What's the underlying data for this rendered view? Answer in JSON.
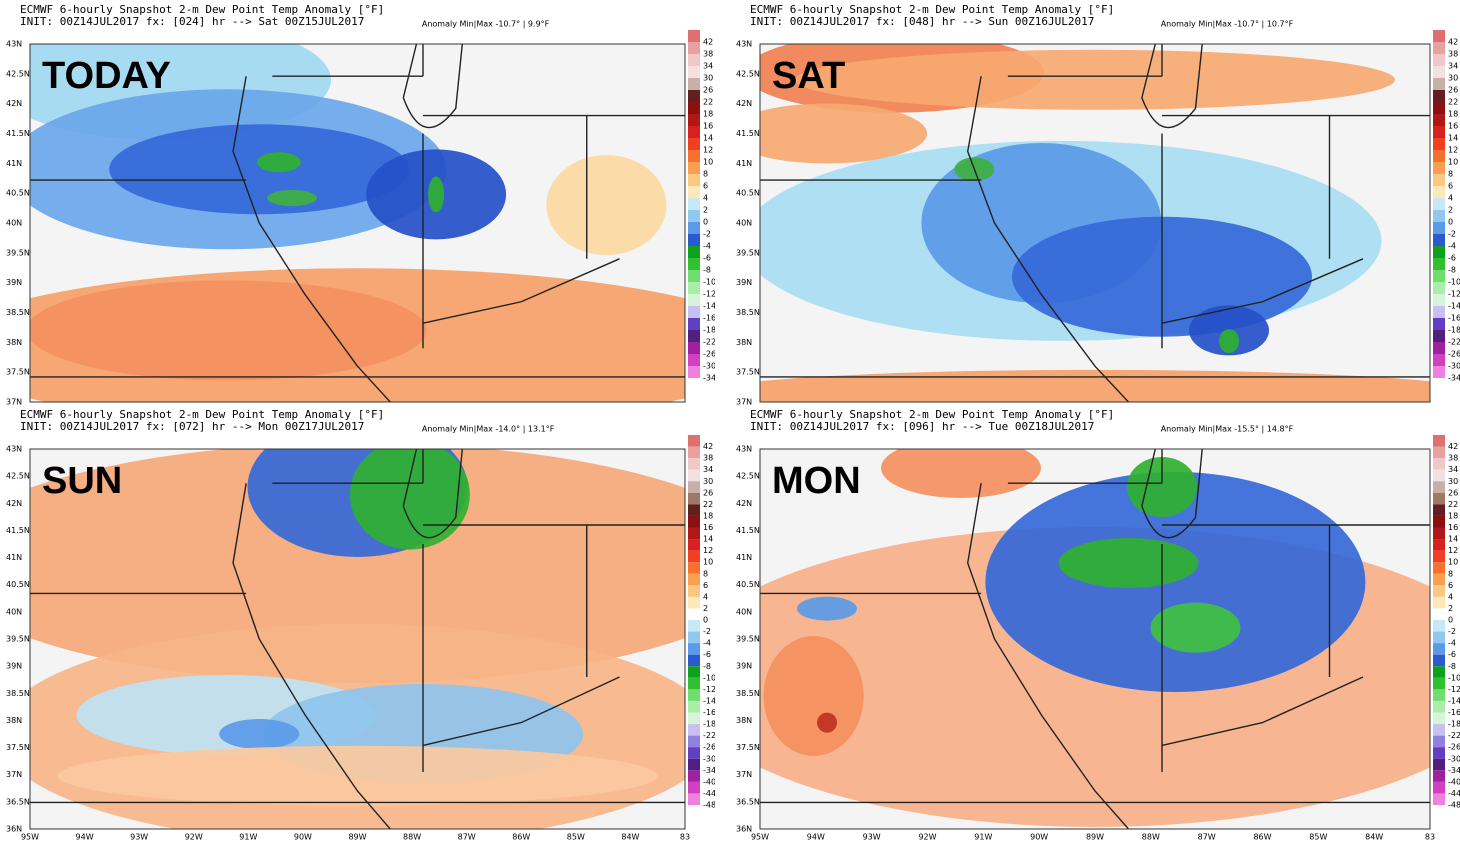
{
  "panels": [
    {
      "title": "ECMWF 6-hourly Snapshot 2-m Dew Point Temp Anomaly [°F]",
      "init": "INIT: 00Z14JUL2017 fx: [024] hr --> Sat 00Z15JUL2017",
      "anomaly": "Anomaly Min|Max -10.7° | 9.9°F",
      "label": "TODAY",
      "lat_labels": [
        "43N",
        "42.5N",
        "42N",
        "41.5N",
        "41N",
        "40.5N",
        "40N",
        "39.5N",
        "39N",
        "38.5N",
        "38N",
        "37.5N",
        "37N"
      ],
      "colorbar_labels": [
        "42",
        "38",
        "34",
        "30",
        "26",
        "22",
        "18",
        "16",
        "14",
        "12",
        "10",
        "8",
        "6",
        "4",
        "2",
        "0",
        "-2",
        "-4",
        "-6",
        "-8",
        "-10",
        "-12",
        "-14",
        "-16",
        "-18",
        "-22",
        "-26",
        "-30",
        "-34"
      ]
    },
    {
      "title": "ECMWF 6-hourly Snapshot 2-m Dew Point Temp Anomaly [°F]",
      "init": "INIT: 00Z14JUL2017 fx: [048] hr --> Sun 00Z16JUL2017",
      "anomaly": "Anomaly Min|Max -10.7° | 10.7°F",
      "label": "SAT",
      "lat_labels": [
        "43N",
        "42.5N",
        "42N",
        "41.5N",
        "41N",
        "40.5N",
        "40N",
        "39.5N",
        "39N",
        "38.5N",
        "38N",
        "37.5N",
        "37N"
      ],
      "colorbar_labels": [
        "42",
        "38",
        "34",
        "30",
        "26",
        "22",
        "18",
        "16",
        "14",
        "12",
        "10",
        "8",
        "6",
        "4",
        "2",
        "0",
        "-2",
        "-4",
        "-6",
        "-8",
        "-10",
        "-12",
        "-14",
        "-16",
        "-18",
        "-22",
        "-26",
        "-30",
        "-34"
      ]
    },
    {
      "title": "ECMWF 6-hourly Snapshot 2-m Dew Point Temp Anomaly [°F]",
      "init": "INIT: 00Z14JUL2017 fx: [072] hr --> Mon 00Z17JUL2017",
      "anomaly": "Anomaly Min|Max -14.0° | 13.1°F",
      "label": "SUN",
      "lat_labels": [
        "43N",
        "42.5N",
        "42N",
        "41.5N",
        "41N",
        "40.5N",
        "40N",
        "39.5N",
        "39N",
        "38.5N",
        "38N",
        "37.5N",
        "37N",
        "36.5N",
        "36N"
      ],
      "colorbar_labels": [
        "42",
        "38",
        "34",
        "30",
        "26",
        "22",
        "18",
        "16",
        "14",
        "12",
        "10",
        "8",
        "6",
        "4",
        "2",
        "0",
        "-2",
        "-4",
        "-6",
        "-8",
        "-10",
        "-12",
        "-14",
        "-16",
        "-18",
        "-22",
        "-26",
        "-30",
        "-34",
        "-40",
        "-44",
        "-48"
      ],
      "lon_labels": [
        "95W",
        "94W",
        "93W",
        "92W",
        "91W",
        "90W",
        "89W",
        "88W",
        "87W",
        "86W",
        "85W",
        "84W",
        "83"
      ]
    },
    {
      "title": "ECMWF 6-hourly Snapshot 2-m Dew Point Temp Anomaly [°F]",
      "init": "INIT: 00Z14JUL2017 fx: [096] hr --> Tue 00Z18JUL2017",
      "anomaly": "Anomaly Min|Max -15.5° | 14.8°F",
      "label": "MON",
      "lat_labels": [
        "43N",
        "42.5N",
        "42N",
        "41.5N",
        "41N",
        "40.5N",
        "40N",
        "39.5N",
        "39N",
        "38.5N",
        "38N",
        "37.5N",
        "37N",
        "36.5N",
        "36N"
      ],
      "colorbar_labels": [
        "42",
        "38",
        "34",
        "30",
        "26",
        "22",
        "18",
        "16",
        "14",
        "12",
        "10",
        "8",
        "6",
        "4",
        "2",
        "0",
        "-2",
        "-4",
        "-6",
        "-8",
        "-10",
        "-12",
        "-14",
        "-16",
        "-18",
        "-22",
        "-26",
        "-30",
        "-34",
        "-40",
        "-44",
        "-48"
      ],
      "lon_labels": [
        "95W",
        "94W",
        "93W",
        "92W",
        "91W",
        "90W",
        "89W",
        "88W",
        "87W",
        "86W",
        "85W",
        "84W",
        "83"
      ]
    }
  ]
}
